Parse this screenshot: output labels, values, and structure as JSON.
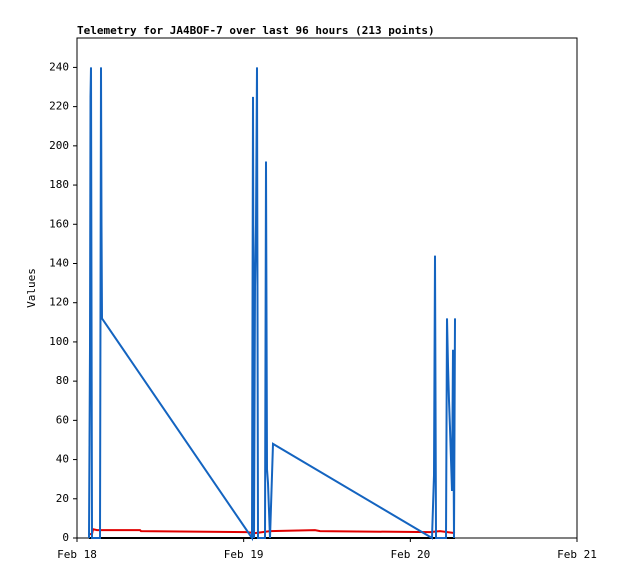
{
  "chart_data": {
    "type": "line",
    "title": "Telemetry for JA4BOF-7 over last 96 hours (213 points)",
    "ylabel": "Values",
    "xlim": [
      0,
      3
    ],
    "ylim": [
      0,
      255
    ],
    "xticks": [
      {
        "value": 0,
        "label": "Feb 18"
      },
      {
        "value": 1,
        "label": "Feb 19"
      },
      {
        "value": 2,
        "label": "Feb 20"
      },
      {
        "value": 3,
        "label": "Feb 21"
      }
    ],
    "yticks": [
      0,
      20,
      40,
      60,
      80,
      100,
      120,
      140,
      160,
      180,
      200,
      220,
      240
    ],
    "series": [
      {
        "color": "#000000",
        "x": [
          0.072,
          2.268
        ],
        "values": [
          0,
          0
        ]
      },
      {
        "color": "#e00000",
        "x": [
          0.072,
          0.09,
          0.096,
          0.12,
          0.378,
          0.384,
          1.02,
          1.068,
          1.158,
          1.428,
          1.458,
          2.118,
          2.178,
          2.268
        ],
        "values": [
          2,
          2,
          4.5,
          4,
          4,
          3.5,
          3,
          2.5,
          3.5,
          4,
          3.5,
          3,
          3.5,
          2.5
        ]
      },
      {
        "color": "#1464c0",
        "x": [
          0.072,
          0.078,
          0.081,
          0.084,
          0.09,
          0.138,
          0.141,
          0.144,
          0.147,
          0.15,
          1.05,
          1.056,
          1.062,
          1.068,
          1.074,
          1.08,
          1.086,
          1.128,
          1.134,
          1.14,
          1.146,
          1.158,
          1.176,
          2.13,
          2.142,
          2.148,
          2.154,
          2.214,
          2.22,
          2.226,
          2.232,
          2.238,
          2.244,
          2.25,
          2.256,
          2.262,
          2.268
        ],
        "values": [
          0,
          97,
          225,
          240,
          0,
          0,
          120,
          240,
          160,
          112,
          0,
          225,
          0,
          128,
          160,
          240,
          0,
          0,
          192,
          35,
          28,
          0,
          48,
          0,
          32,
          144,
          0,
          0,
          112,
          88,
          70,
          56,
          40,
          24,
          96,
          0,
          112
        ]
      }
    ]
  }
}
